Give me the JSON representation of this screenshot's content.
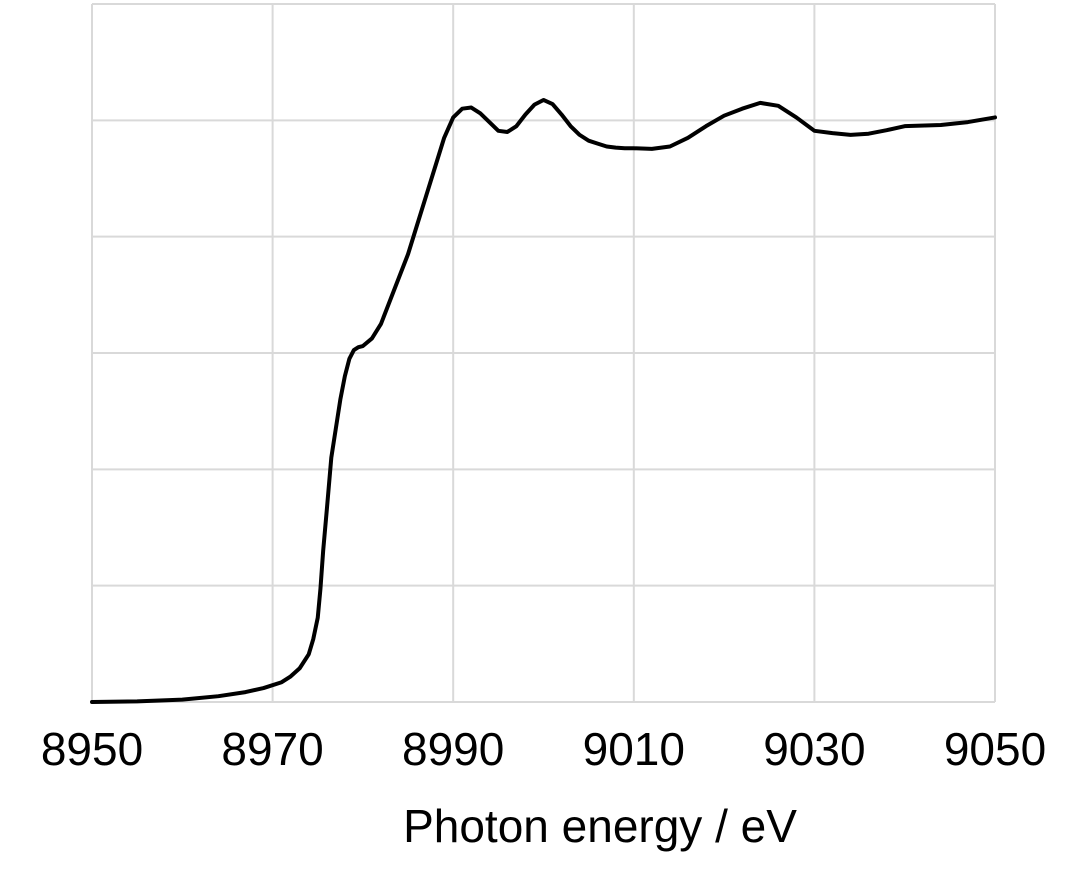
{
  "chart_data": {
    "type": "line",
    "title": "",
    "xlabel": "Photon energy / eV",
    "ylabel": "",
    "xlim": [
      8950,
      9050
    ],
    "ylim": [
      0,
      1.2
    ],
    "x_ticks": [
      8950,
      8970,
      8990,
      9010,
      9030,
      9050
    ],
    "x_tick_labels": [
      "8950",
      "8970",
      "8990",
      "9010",
      "9030",
      "9050"
    ],
    "x_gridlines": [
      8950,
      8970,
      8990,
      9010,
      9030,
      9050
    ],
    "y_gridlines": [
      0,
      0.2,
      0.4,
      0.6,
      0.8,
      1.0,
      1.2
    ],
    "grid": true,
    "legend": "none",
    "line_color": "#000000",
    "grid_color": "#d9d9d9",
    "series": [
      {
        "x": [
          8950,
          8955,
          8960,
          8964,
          8967,
          8969,
          8971,
          8972,
          8973,
          8974,
          8974.5,
          8975,
          8975.3,
          8975.6,
          8976,
          8976.5,
          8977,
          8977.5,
          8978,
          8978.5,
          8979,
          8979.5,
          8980,
          8981,
          8982,
          8983,
          8984,
          8985,
          8986,
          8987,
          8988,
          8989,
          8990,
          8991,
          8992,
          8993,
          8994,
          8995,
          8996,
          8997,
          8998,
          8999,
          9000,
          9001,
          9002,
          9003,
          9004,
          9005,
          9006,
          9007,
          9008,
          9009,
          9010,
          9012,
          9014,
          9016,
          9018,
          9020,
          9022,
          9024,
          9026,
          9028,
          9030,
          9032,
          9034,
          9036,
          9038,
          9040,
          9044,
          9047,
          9050
        ],
        "y": [
          0,
          0.001,
          0.004,
          0.01,
          0.017,
          0.024,
          0.034,
          0.044,
          0.058,
          0.082,
          0.108,
          0.145,
          0.195,
          0.26,
          0.33,
          0.42,
          0.47,
          0.52,
          0.56,
          0.59,
          0.605,
          0.61,
          0.612,
          0.625,
          0.65,
          0.69,
          0.73,
          0.77,
          0.82,
          0.87,
          0.92,
          0.97,
          1.005,
          1.02,
          1.022,
          1.012,
          0.997,
          0.982,
          0.98,
          0.99,
          1.01,
          1.027,
          1.035,
          1.028,
          1.01,
          0.99,
          0.975,
          0.965,
          0.96,
          0.955,
          0.953,
          0.952,
          0.952,
          0.951,
          0.955,
          0.97,
          0.99,
          1.008,
          1.02,
          1.03,
          1.025,
          1.005,
          0.982,
          0.978,
          0.975,
          0.977,
          0.983,
          0.99,
          0.992,
          0.997,
          1.005
        ]
      }
    ]
  }
}
